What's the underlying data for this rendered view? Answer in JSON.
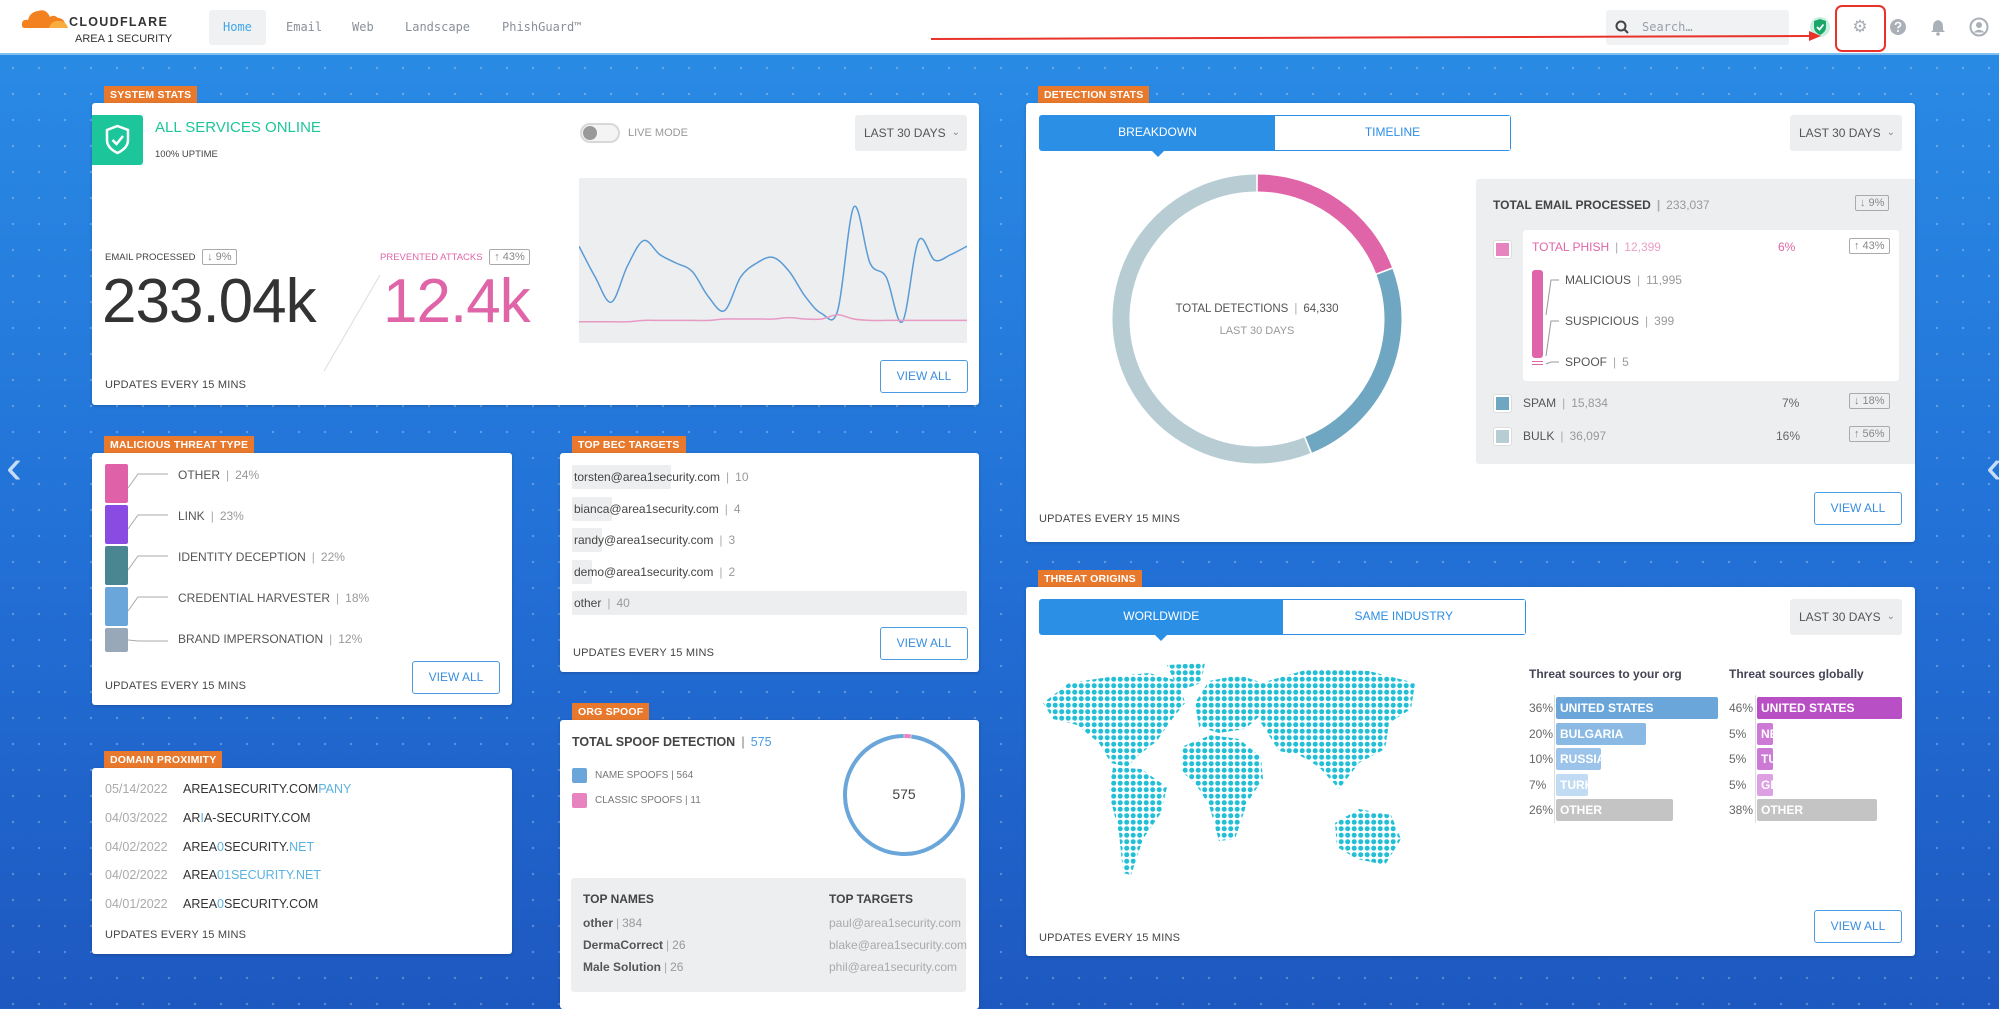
{
  "header": {
    "logo_text": "CLOUDFLARE",
    "logo_sub": "AREA 1 SECURITY",
    "nav": [
      "Home",
      "Email",
      "Web",
      "Landscape",
      "PhishGuard™"
    ],
    "active_nav": "Home",
    "search_placeholder": "Search…",
    "icons": [
      "shield-check-icon",
      "gear-icon",
      "help-icon",
      "bell-icon",
      "user-icon"
    ]
  },
  "colors": {
    "accent": "#2c8fe6",
    "label": "#e8792c",
    "online": "#1dc59a",
    "pink": "#e065a8",
    "spam": "#6fa6c2",
    "bulk": "#b7cdd3"
  },
  "system_stats": {
    "label": "SYSTEM STATS",
    "status": "ALL SERVICES ONLINE",
    "uptime": "100% UPTIME",
    "live_mode": "LIVE MODE",
    "live_mode_on": false,
    "range": "LAST 30 DAYS",
    "email_label": "EMAIL PROCESSED",
    "email_change": "↓ 9%",
    "email_value": "233.04k",
    "attacks_label": "PREVENTED ATTACKS",
    "attacks_change": "↑ 43%",
    "attacks_value": "12.4k",
    "sparkline": {
      "email": [
        62,
        40,
        22,
        48,
        66,
        56,
        50,
        44,
        26,
        16,
        40,
        50,
        54,
        44,
        26,
        14,
        16,
        90,
        50,
        40,
        8,
        66,
        52,
        56,
        62
      ],
      "attacks": [
        8,
        8,
        8,
        8,
        9,
        9,
        9,
        9,
        9,
        10,
        10,
        10,
        10,
        11,
        10,
        10,
        13,
        10,
        9,
        9,
        9,
        9,
        9,
        9,
        9
      ]
    },
    "updates": "UPDATES EVERY 15 MINS",
    "view_all": "VIEW ALL"
  },
  "malicious": {
    "label": "MALICIOUS THREAT TYPE",
    "items": [
      {
        "name": "OTHER",
        "pct": "24%",
        "color": "#df62a8"
      },
      {
        "name": "LINK",
        "pct": "23%",
        "color": "#8a4be3"
      },
      {
        "name": "IDENTITY DECEPTION",
        "pct": "22%",
        "color": "#4a8592"
      },
      {
        "name": "CREDENTIAL HARVESTER",
        "pct": "18%",
        "color": "#6aa6da"
      },
      {
        "name": "BRAND IMPERSONATION",
        "pct": "12%",
        "color": "#98a8b8"
      }
    ],
    "updates": "UPDATES EVERY 15 MINS",
    "view_all": "VIEW ALL"
  },
  "bec": {
    "label": "TOP BEC TARGETS",
    "items": [
      {
        "email": "torsten@area1security.com",
        "count": 10
      },
      {
        "email": "bianca@area1security.com",
        "count": 4
      },
      {
        "email": "randy@area1security.com",
        "count": 3
      },
      {
        "email": "demo@area1security.com",
        "count": 2
      },
      {
        "email": "other",
        "count": 40
      }
    ],
    "updates": "UPDATES EVERY 15 MINS",
    "view_all": "VIEW ALL"
  },
  "domain": {
    "label": "DOMAIN PROXIMITY",
    "items": [
      {
        "date": "05/14/2022",
        "parts": [
          [
            "AREA1SECURITY.COM",
            false
          ],
          [
            "PANY",
            true
          ]
        ]
      },
      {
        "date": "04/03/2022",
        "parts": [
          [
            "AR",
            false
          ],
          [
            "I",
            true
          ],
          [
            "A-SECURITY.COM",
            false
          ]
        ]
      },
      {
        "date": "04/02/2022",
        "parts": [
          [
            "AREA",
            false
          ],
          [
            "0",
            true
          ],
          [
            "SECURITY.",
            false
          ],
          [
            "NET",
            true
          ]
        ]
      },
      {
        "date": "04/02/2022",
        "parts": [
          [
            "AREA",
            false
          ],
          [
            "01SECURITY.NET",
            true
          ]
        ]
      },
      {
        "date": "04/01/2022",
        "parts": [
          [
            "AREA",
            false
          ],
          [
            "0",
            true
          ],
          [
            "SECURITY.COM",
            false
          ]
        ]
      }
    ],
    "updates": "UPDATES EVERY 15 MINS"
  },
  "spoof": {
    "label": "ORG SPOOF",
    "title": "TOTAL SPOOF DETECTION",
    "total": "575",
    "legend": [
      {
        "name": "NAME SPOOFS",
        "value": 564,
        "color": "#6aa6da"
      },
      {
        "name": "CLASSIC SPOOFS",
        "value": 11,
        "color": "#e784c0"
      }
    ],
    "top_names_title": "TOP NAMES",
    "top_names": [
      {
        "name": "other",
        "count": "384"
      },
      {
        "name": "DermaCorrect",
        "count": "26"
      },
      {
        "name": "Male Solution",
        "count": "26"
      }
    ],
    "top_targets_title": "TOP TARGETS",
    "top_targets": [
      "paul@area1security.com",
      "blake@area1security.com",
      "phil@area1security.com"
    ]
  },
  "detection": {
    "label": "DETECTION STATS",
    "tabs": [
      "BREAKDOWN",
      "TIMELINE"
    ],
    "active_tab": "BREAKDOWN",
    "range": "LAST 30 DAYS",
    "total_label": "TOTAL DETECTIONS",
    "total_value": "64,330",
    "period": "LAST 30 DAYS",
    "processed_label": "TOTAL EMAIL PROCESSED",
    "processed_value": "233,037",
    "processed_change": "↓ 9%",
    "phish": {
      "label": "TOTAL PHISH",
      "value": "12,399",
      "pct": "6%",
      "change": "↑ 43%"
    },
    "phish_sub": [
      {
        "label": "MALICIOUS",
        "value": "11,995"
      },
      {
        "label": "SUSPICIOUS",
        "value": "399"
      },
      {
        "label": "SPOOF",
        "value": "5"
      }
    ],
    "spam": {
      "label": "SPAM",
      "value": "15,834",
      "pct": "7%",
      "change": "↓ 18%"
    },
    "bulk": {
      "label": "BULK",
      "value": "36,097",
      "pct": "16%",
      "change": "↑ 56%"
    },
    "donut": [
      {
        "name": "phish",
        "value": 12399,
        "color": "#e065a8"
      },
      {
        "name": "spam",
        "value": 15834,
        "color": "#6fa6c2"
      },
      {
        "name": "bulk",
        "value": 36097,
        "color": "#b7cdd3"
      }
    ],
    "updates": "UPDATES EVERY 15 MINS",
    "view_all": "VIEW ALL"
  },
  "origins": {
    "label": "THREAT ORIGINS",
    "tabs": [
      "WORLDWIDE",
      "SAME INDUSTRY"
    ],
    "active_tab": "WORLDWIDE",
    "range": "LAST 30 DAYS",
    "org_title": "Threat sources to your org",
    "org": [
      {
        "country": "UNITED STATES",
        "pct": 36
      },
      {
        "country": "BULGARIA",
        "pct": 20
      },
      {
        "country": "RUSSIA",
        "pct": 10
      },
      {
        "country": "TURKEY",
        "pct": 7
      },
      {
        "country": "OTHER",
        "pct": 26
      }
    ],
    "global_title": "Threat sources globally",
    "global": [
      {
        "country": "UNITED STATES",
        "pct": 46
      },
      {
        "country": "NETHERLANDS",
        "pct": 5
      },
      {
        "country": "TURKEY",
        "pct": 5
      },
      {
        "country": "GERMANY",
        "pct": 5
      },
      {
        "country": "OTHER",
        "pct": 38
      }
    ],
    "updates": "UPDATES EVERY 15 MINS",
    "view_all": "VIEW ALL"
  },
  "carousel": {
    "prev_icon": "chevron-left-icon",
    "next_icon": "chevron-right-icon"
  }
}
